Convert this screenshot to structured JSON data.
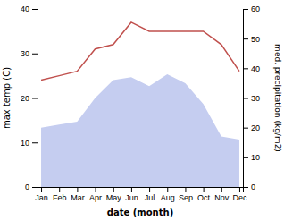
{
  "chart_data": {
    "type": "line",
    "x_label": "date (month)",
    "y_label": "max temp (C)",
    "y2_label": "med. precipitation (kg/m2)",
    "categories": [
      "Jan",
      "Feb",
      "Mar",
      "Apr",
      "May",
      "Jun",
      "Jul",
      "Aug",
      "Sep",
      "Oct",
      "Nov",
      "Dec"
    ],
    "series": [
      {
        "type": "area",
        "axis": "y2",
        "color": "#c5cdf0",
        "values": [
          20,
          21,
          22,
          30,
          36,
          37,
          34,
          38,
          35,
          28,
          17,
          16
        ]
      },
      {
        "type": "line",
        "color": "#c0504d",
        "values": [
          24,
          25,
          26,
          31,
          32,
          37,
          35,
          35,
          35,
          35,
          32,
          26
        ]
      }
    ],
    "ylim": [
      0,
      40
    ],
    "yticks": [
      0,
      10,
      20,
      30,
      40
    ],
    "y2lim": [
      0,
      60
    ],
    "y2ticks": [
      0,
      10,
      20,
      30,
      40,
      50,
      60
    ],
    "grid": false
  }
}
